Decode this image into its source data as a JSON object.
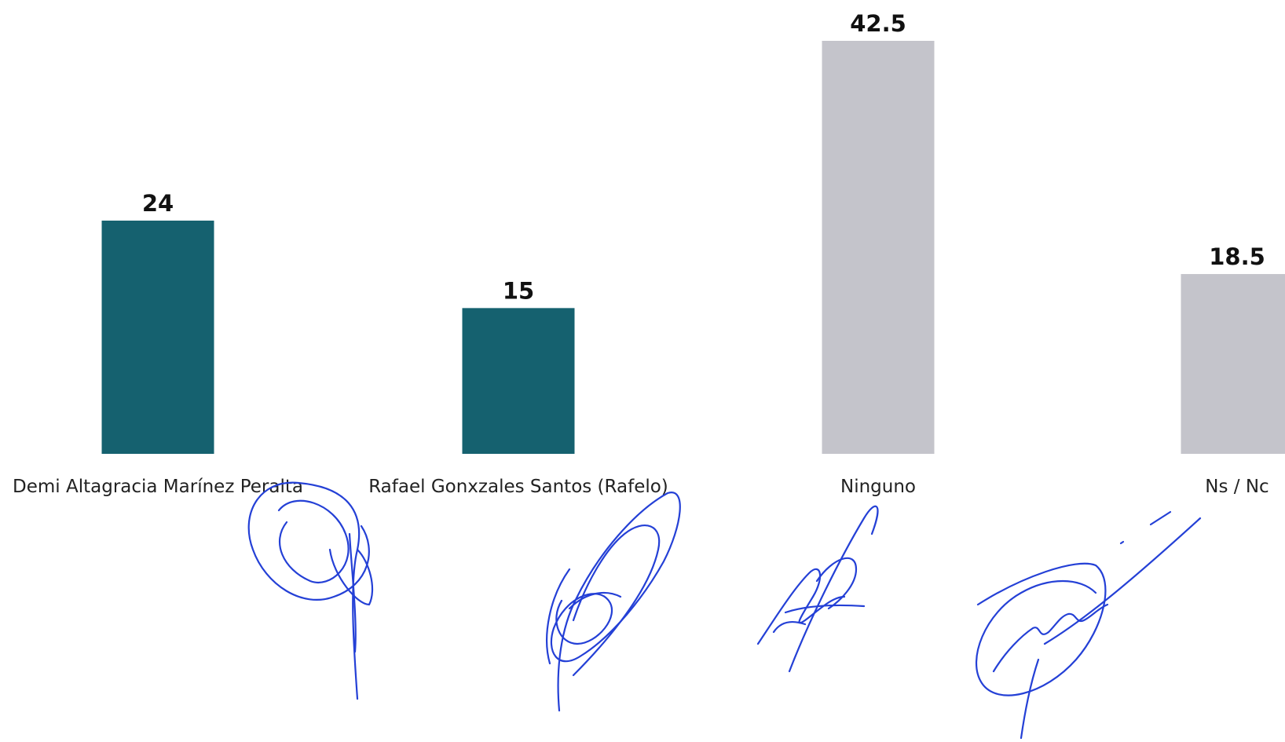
{
  "chart_data": {
    "type": "bar",
    "categories": [
      "Demi Altagracia Marínez Peralta",
      "Rafael Gonxzales Santos (Rafelo)",
      "Ninguno",
      "Ns / Nc"
    ],
    "values": [
      24,
      15,
      42.5,
      18.5
    ],
    "value_labels": [
      "24",
      "15",
      "42.5",
      "18.5"
    ],
    "bar_colors": [
      "#15616f",
      "#15616f",
      "#c4c4cb",
      "#c4c4cb"
    ],
    "ylim": [
      0,
      42.5
    ],
    "grid": false,
    "legend": "none"
  },
  "signature_color": "#2440d6"
}
